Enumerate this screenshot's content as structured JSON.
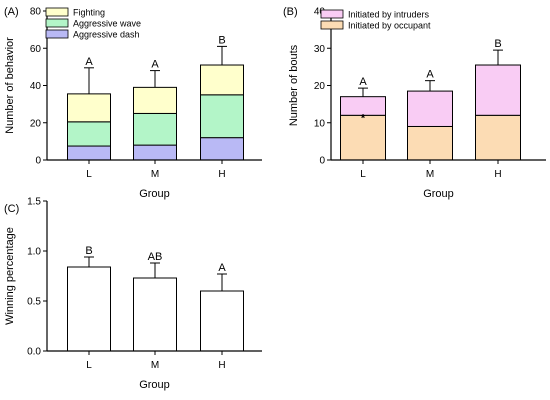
{
  "chart_data": [
    {
      "type": "bar",
      "stacked": true,
      "panel_label": "(A)",
      "categories": [
        "L",
        "M",
        "H"
      ],
      "xlabel": "Group",
      "ylabel": "Number of behavior",
      "ylim": [
        0,
        80
      ],
      "yticks": [
        "0",
        "20",
        "40",
        "60",
        "80"
      ],
      "legend_position": "top-left",
      "series": [
        {
          "name": "Aggressive dash",
          "color": "#b9b9f5",
          "values": [
            7.5,
            8,
            12
          ]
        },
        {
          "name": "Aggressive wave",
          "color": "#b3f5c8",
          "values": [
            13,
            17,
            23
          ]
        },
        {
          "name": "Fighting",
          "color": "#ffffcc",
          "values": [
            15,
            14,
            16
          ]
        }
      ],
      "error_bars": [
        14,
        9,
        10
      ],
      "significance": [
        "A",
        "A",
        "B"
      ]
    },
    {
      "type": "bar",
      "stacked": true,
      "panel_label": "(B)",
      "categories": [
        "L",
        "M",
        "H"
      ],
      "xlabel": "Group",
      "ylabel": "Number of bouts",
      "ylim": [
        0,
        40
      ],
      "yticks": [
        "0",
        "10",
        "20",
        "30",
        "40"
      ],
      "legend_position": "top-left",
      "series": [
        {
          "name": "Initiated by occupant",
          "color": "#fcdcb4",
          "values": [
            12,
            9,
            12
          ]
        },
        {
          "name": "Initiated by intruders",
          "color": "#f9ccf4",
          "values": [
            5,
            9.5,
            13.5
          ]
        }
      ],
      "error_bars": [
        2.3,
        2.8,
        4
      ],
      "significance": [
        "A",
        "A",
        "B"
      ],
      "annotation": "*"
    },
    {
      "type": "bar",
      "panel_label": "(C)",
      "categories": [
        "L",
        "M",
        "H"
      ],
      "xlabel": "Group",
      "ylabel": "Winning percentage",
      "ylim": [
        0,
        1.5
      ],
      "yticks": [
        "0.0",
        "0.5",
        "1.0",
        "1.5"
      ],
      "series": [
        {
          "color": "#ffffff",
          "values": [
            0.84,
            0.73,
            0.6
          ]
        }
      ],
      "error_bars": [
        0.1,
        0.15,
        0.17
      ],
      "significance": [
        "B",
        "AB",
        "A"
      ]
    }
  ]
}
